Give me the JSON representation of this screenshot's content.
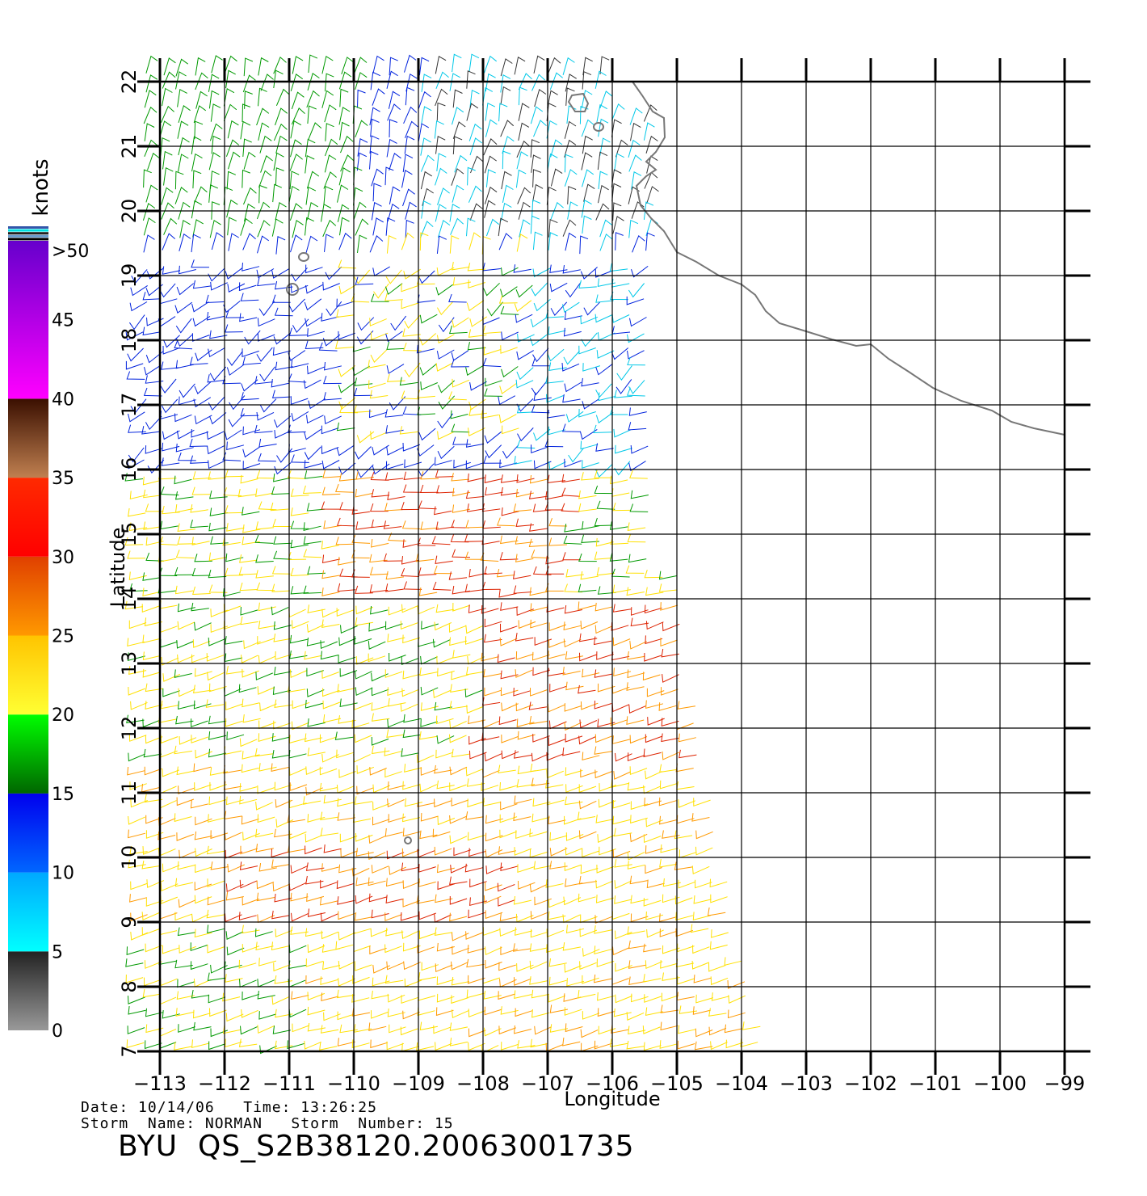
{
  "map": {
    "x_axis": {
      "label": "Longitude",
      "ticks": [
        "−113",
        "−112",
        "−111",
        "−110",
        "−109",
        "−108",
        "−107",
        "−106",
        "−105",
        "−104",
        "−103",
        "−102",
        "−101",
        "−100",
        "−99"
      ],
      "range": [
        -113,
        -99
      ]
    },
    "y_axis": {
      "label": "Latitude",
      "ticks": [
        "7",
        "8",
        "9",
        "10",
        "11",
        "12",
        "13",
        "14",
        "15",
        "16",
        "17",
        "18",
        "19",
        "20",
        "21",
        "22"
      ],
      "range": [
        7,
        22
      ]
    },
    "grid": true,
    "legend": {
      "title": "knots",
      "placement": "left",
      "tick_labels": [
        "0",
        "5",
        "10",
        "15",
        "20",
        "25",
        "30",
        "35",
        "40",
        "45",
        ">50"
      ],
      "bands": [
        {
          "from": 0,
          "to": 5,
          "colors": [
            "#999999",
            "#222222"
          ]
        },
        {
          "from": 5,
          "to": 10,
          "colors": [
            "#00ffff",
            "#00a8ff"
          ]
        },
        {
          "from": 10,
          "to": 15,
          "colors": [
            "#0066ff",
            "#0000ee"
          ]
        },
        {
          "from": 15,
          "to": 20,
          "colors": [
            "#006600",
            "#00ff00"
          ]
        },
        {
          "from": 20,
          "to": 25,
          "colors": [
            "#ffff33",
            "#ffc400"
          ]
        },
        {
          "from": 25,
          "to": 30,
          "colors": [
            "#ff9900",
            "#e04000"
          ]
        },
        {
          "from": 30,
          "to": 35,
          "colors": [
            "#ff0000",
            "#ff2a00"
          ]
        },
        {
          "from": 35,
          "to": 40,
          "colors": [
            "#c08050",
            "#3a0f00"
          ]
        },
        {
          "from": 40,
          "to": 50,
          "colors": [
            "#ff00ff",
            "#6600cc"
          ]
        }
      ]
    },
    "wind_barb_colors": {
      "calm": "#333333",
      "light": "#00c8e8",
      "moderate": "#0022dd",
      "fresh": "#009900",
      "strong": "#ffe000",
      "near_gale": "#ff9900",
      "gale": "#dd2200"
    },
    "coastline_color": "#777777"
  },
  "footer": {
    "line1": "Date: 10/14/06   Time: 13:26:25",
    "line2": "Storm  Name: NORMAN   Storm  Number: 15",
    "product_id": "BYU  QS_S2B38120.20063001735"
  }
}
